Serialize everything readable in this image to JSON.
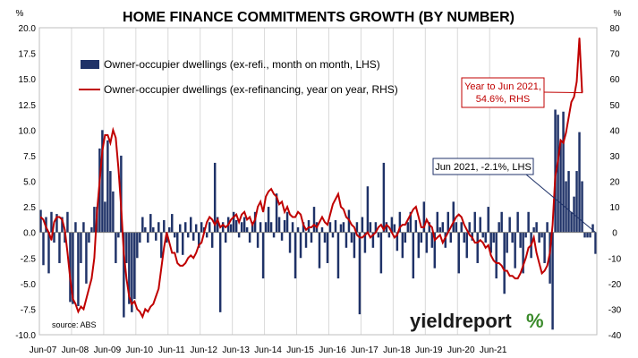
{
  "chart_data": {
    "type": "bar+line",
    "title": "HOME FINANCE COMMITMENTS GROWTH (BY NUMBER)",
    "y_left_unit": "%",
    "y_right_unit": "%",
    "y_left_range": [
      -10,
      20
    ],
    "y_left_ticks": [
      "20.0",
      "17.5",
      "15.0",
      "12.5",
      "10.0",
      "7.5",
      "5.0",
      "2.5",
      "0.0",
      "-2.5",
      "-5.0",
      "-7.5",
      "-10.0"
    ],
    "y_right_range": [
      -40,
      80
    ],
    "y_right_ticks": [
      "80",
      "70",
      "60",
      "50",
      "40",
      "30",
      "20",
      "10",
      "0",
      "-10",
      "-20",
      "-30",
      "-40"
    ],
    "x_ticks": [
      "Jun-07",
      "Jun-08",
      "Jun-09",
      "Jun-10",
      "Jun-11",
      "Jun-12",
      "Jun-13",
      "Jun-14",
      "Jun-15",
      "Jun-16",
      "Jun-17",
      "Jun-18",
      "Jun-19",
      "Jun-20",
      "Jun-21"
    ],
    "x_start": "2007-06",
    "grid": "vertical",
    "legend_position": "top-left",
    "colors": {
      "bars": "#1f3268",
      "line": "#c00000",
      "frame": "#bfbfbf",
      "text": "#000000"
    },
    "series": [
      {
        "name": "Owner-occupier dwellings (ex-refi., month on month, LHS)",
        "kind": "bar",
        "axis": "left",
        "values": [
          2.2,
          -3.2,
          1.5,
          -4.0,
          2.0,
          -1.0,
          1.8,
          -3.0,
          1.5,
          -1.0,
          2.0,
          -6.8,
          -7.0,
          1.0,
          -7.2,
          -3.0,
          1.0,
          -5.0,
          -1.0,
          0.5,
          2.5,
          2.5,
          8.2,
          10.0,
          3.0,
          9.0,
          6.0,
          4.0,
          -3.0,
          -0.5,
          7.5,
          -8.3,
          -3.0,
          -7.0,
          -7.8,
          -6.5,
          -2.5,
          -1.0,
          1.5,
          0.5,
          -1.0,
          1.8,
          0.5,
          -0.8,
          1.0,
          -2.5,
          1.2,
          -1.0,
          0.5,
          1.8,
          -0.5,
          -2.0,
          0.8,
          -2.2,
          1.0,
          -0.5,
          1.5,
          -0.8,
          0.8,
          -1.5,
          1.0,
          0.5,
          -0.5,
          1.0,
          -1.5,
          6.8,
          1.5,
          -7.8,
          1.0,
          -1.0,
          1.5,
          0.8,
          2.0,
          1.2,
          -0.5,
          1.0,
          1.5,
          0.5,
          -1.0,
          1.0,
          2.0,
          -1.5,
          1.0,
          -4.5,
          1.0,
          2.5,
          1.0,
          -0.5,
          3.8,
          1.5,
          -0.8,
          1.2,
          2.0,
          -2.0,
          1.0,
          -4.5,
          0.5,
          -2.5,
          1.0,
          -1.5,
          1.2,
          -1.0,
          2.5,
          1.0,
          -3.5,
          0.5,
          -1.0,
          -3.0,
          1.0,
          -0.5,
          1.2,
          -4.5,
          0.8,
          1.0,
          -1.5,
          2.2,
          -1.0,
          -2.5,
          1.0,
          -8.0,
          1.5,
          -2.0,
          4.5,
          1.0,
          -1.5,
          1.0,
          -0.5,
          -4.0,
          6.8,
          1.0,
          -0.5,
          1.5,
          0.8,
          -1.8,
          2.0,
          -2.5,
          -1.0,
          1.0,
          2.0,
          -4.5,
          1.2,
          -2.5,
          -1.0,
          3.0,
          -2.0,
          1.0,
          -1.5,
          -3.5,
          2.0,
          0.5,
          1.0,
          -1.5,
          2.0,
          -1.0,
          3.0,
          1.0,
          -4.0,
          1.0,
          -1.0,
          -2.5,
          1.0,
          -0.8,
          2.0,
          -3.0,
          1.5,
          -0.5,
          -1.0,
          2.5,
          -2.0,
          -1.0,
          -4.5,
          1.0,
          2.0,
          -6.0,
          -2.0,
          1.5,
          -1.0,
          -3.5,
          2.0,
          -1.5,
          -4.0,
          -0.5,
          2.0,
          -2.5,
          0.5,
          1.0,
          -1.0,
          -0.5,
          -3.0,
          1.0,
          -5.0,
          -9.5,
          12.0,
          11.5,
          9.0,
          11.8,
          5.0,
          6.0,
          2.0,
          3.5,
          6.0,
          9.8,
          5.0,
          -0.5,
          -0.5,
          -0.5,
          0.8,
          -2.1
        ]
      },
      {
        "name": "Owner-occupier dwellings (ex-refinancing, year on year, RHS)",
        "kind": "line",
        "axis": "right",
        "values": [
          6.0,
          5.0,
          2.0,
          0.0,
          -3.0,
          4.0,
          6.0,
          6.0,
          5.0,
          1.0,
          -8.0,
          -18.0,
          -26.0,
          -28.0,
          -31.0,
          -29.0,
          -30.0,
          -26.0,
          -22.0,
          -18.0,
          -10.0,
          8.0,
          20.0,
          32.0,
          38.0,
          38.0,
          35.0,
          40.0,
          37.0,
          25.0,
          10.0,
          -8.0,
          -18.0,
          -25.0,
          -28.0,
          -27.0,
          -30.0,
          -31.0,
          -33.0,
          -30.0,
          -31.0,
          -29.0,
          -28.0,
          -25.0,
          -22.0,
          -14.0,
          -6.0,
          0.0,
          -4.0,
          -8.0,
          -8.0,
          -12.0,
          -13.0,
          -13.0,
          -12.0,
          -10.0,
          -9.0,
          -10.0,
          -8.0,
          -5.0,
          -4.0,
          0.0,
          4.0,
          6.0,
          5.0,
          3.0,
          5.0,
          2.0,
          3.0,
          2.0,
          3.0,
          5.0,
          6.0,
          7.0,
          4.0,
          7.0,
          8.0,
          5.0,
          6.0,
          3.0,
          5.0,
          10.0,
          12.0,
          8.0,
          14.0,
          16.0,
          17.0,
          15.0,
          14.0,
          11.0,
          12.0,
          8.0,
          10.0,
          7.0,
          6.0,
          6.0,
          8.0,
          7.0,
          3.0,
          1.0,
          2.0,
          2.0,
          3.0,
          2.0,
          4.0,
          6.0,
          4.0,
          3.0,
          7.0,
          11.0,
          13.0,
          15.0,
          10.0,
          9.0,
          6.0,
          5.0,
          3.0,
          2.0,
          -1.0,
          -2.0,
          -2.0,
          -1.0,
          0.0,
          -2.0,
          -1.0,
          0.0,
          2.0,
          3.0,
          1.0,
          3.0,
          2.0,
          0.0,
          -2.0,
          -1.0,
          2.0,
          3.0,
          3.0,
          5.0,
          7.0,
          9.0,
          10.0,
          6.0,
          2.0,
          2.0,
          5.0,
          3.0,
          2.0,
          -3.0,
          -2.0,
          -1.0,
          -4.0,
          -2.0,
          0.0,
          2.0,
          4.0,
          6.0,
          7.0,
          6.0,
          3.0,
          1.0,
          -1.0,
          -2.0,
          -4.0,
          -4.0,
          -3.0,
          -4.0,
          -6.0,
          -5.0,
          -9.0,
          -11.0,
          -12.0,
          -12.0,
          -13.0,
          -15.0,
          -15.0,
          -17.0,
          -17.0,
          -18.0,
          -18.0,
          -16.0,
          -13.0,
          -10.0,
          -6.0,
          -5.0,
          -2.0,
          -8.0,
          -12.0,
          -16.0,
          -15.0,
          -13.0,
          -8.0,
          3.0,
          22.0,
          28.0,
          36.0,
          35.0,
          39.0,
          45.0,
          51.0,
          53.0,
          59.0,
          76.0,
          54.6
        ]
      }
    ],
    "annotations": [
      {
        "text": "Year to Jun 2021,",
        "text2": "54.6%, RHS",
        "series": 1,
        "point": "last",
        "box_border": "#c00000"
      },
      {
        "text": "Jun 2021, -2.1%, LHS",
        "series": 0,
        "point": "last",
        "box_border": "#1f3268"
      }
    ],
    "source": "source: ABS",
    "watermark": {
      "word": "yieldreport",
      "symbol": "%"
    }
  }
}
